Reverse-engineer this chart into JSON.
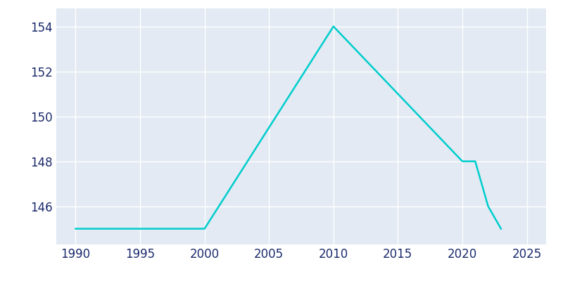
{
  "years": [
    1990,
    2000,
    2010,
    2020,
    2021,
    2022,
    2023
  ],
  "population": [
    145,
    145,
    154,
    148,
    148,
    146,
    145
  ],
  "line_color": "#00CDCD",
  "line_width": 1.8,
  "plot_bg_color": "#E3EAF3",
  "fig_bg_color": "#FFFFFF",
  "grid_color": "#FFFFFF",
  "text_color": "#1a2a6c",
  "xlim": [
    1988.5,
    2026.5
  ],
  "ylim": [
    144.3,
    154.8
  ],
  "yticks": [
    146,
    148,
    150,
    152,
    154
  ],
  "xticks": [
    1990,
    1995,
    2000,
    2005,
    2010,
    2015,
    2020,
    2025
  ],
  "tick_fontsize": 12
}
